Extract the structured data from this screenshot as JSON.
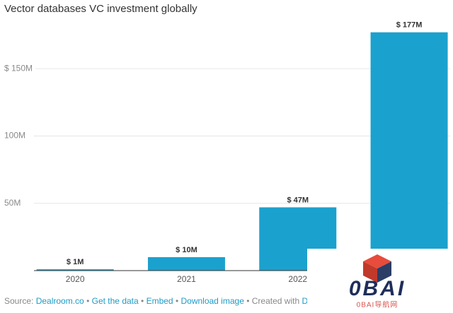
{
  "chart_data": {
    "type": "bar",
    "title": "Vector databases VC investment globally",
    "categories": [
      "2020",
      "2021",
      "2022",
      null
    ],
    "values": [
      1,
      10,
      47,
      177
    ],
    "value_labels": [
      "$ 1M",
      "$ 10M",
      "$ 47M",
      "$ 177M"
    ],
    "color": "#1ba1cd",
    "ylim": [
      0,
      180
    ],
    "yticks": [
      {
        "value": 50,
        "label": "50M"
      },
      {
        "value": 100,
        "label": "100M"
      },
      {
        "value": 150,
        "label": "$ 150M"
      }
    ],
    "grid": true,
    "footer": {
      "source_label": "Source:",
      "source": "Dealroom.co",
      "separator": "•",
      "links": [
        "Get the data",
        "Embed",
        "Download image"
      ],
      "created_with": "Created with",
      "tool": "Datawrapper"
    },
    "watermark": {
      "logo": "0BAI",
      "tagline": "0BAI导航网"
    }
  }
}
